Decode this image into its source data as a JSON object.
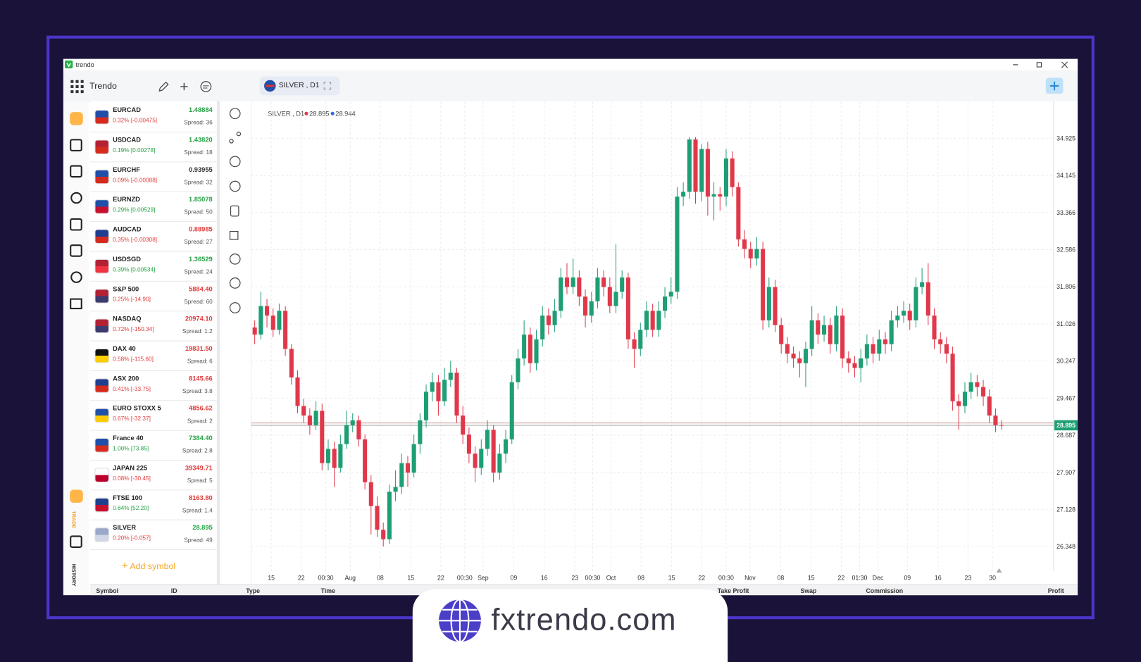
{
  "window": {
    "app_name": "trendo",
    "toolbar_title": "Trendo",
    "tab_label": "SILVER , D1"
  },
  "sidebar": {
    "trade_label": "TRADE",
    "history_label": "HISTORY"
  },
  "symbols": [
    {
      "name": "EURCAD",
      "change": "0.32% [-0.00475]",
      "price": "1.48884",
      "spread": "Spread: 36",
      "change_dir": "down",
      "price_dir": "up"
    },
    {
      "name": "USDCAD",
      "change": "0.19% [0.00278]",
      "price": "1.43820",
      "spread": "Spread: 18",
      "change_dir": "up",
      "price_dir": "up"
    },
    {
      "name": "EURCHF",
      "change": "0.09% [-0.00088]",
      "price": "0.93955",
      "spread": "Spread: 32",
      "change_dir": "down",
      "price_dir": "flat"
    },
    {
      "name": "EURNZD",
      "change": "0.29% [0.00529]",
      "price": "1.85078",
      "spread": "Spread: 50",
      "change_dir": "up",
      "price_dir": "up"
    },
    {
      "name": "AUDCAD",
      "change": "0.35% [-0.00308]",
      "price": "0.88985",
      "spread": "Spread: 27",
      "change_dir": "down",
      "price_dir": "down"
    },
    {
      "name": "USDSGD",
      "change": "0.39% [0.00534]",
      "price": "1.36529",
      "spread": "Spread: 24",
      "change_dir": "up",
      "price_dir": "up"
    },
    {
      "name": "S&P 500",
      "change": "0.25% [-14.90]",
      "price": "5884.40",
      "spread": "Spread: 60",
      "change_dir": "down",
      "price_dir": "down"
    },
    {
      "name": "NASDAQ",
      "change": "0.72% [-150.34]",
      "price": "20974.10",
      "spread": "Spread: 1.2",
      "change_dir": "down",
      "price_dir": "down"
    },
    {
      "name": "DAX 40",
      "change": "0.58% [-115.60]",
      "price": "19831.50",
      "spread": "Spread: 6",
      "change_dir": "down",
      "price_dir": "down"
    },
    {
      "name": "ASX 200",
      "change": "0.41% [-33.75]",
      "price": "8145.66",
      "spread": "Spread: 3.8",
      "change_dir": "down",
      "price_dir": "down"
    },
    {
      "name": "EURO STOXX 5",
      "change": "0.67% [-32.37]",
      "price": "4856.62",
      "spread": "Spread: 2",
      "change_dir": "down",
      "price_dir": "down"
    },
    {
      "name": "France 40",
      "change": "1.00% [73.85]",
      "price": "7384.40",
      "spread": "Spread: 2.8",
      "change_dir": "up",
      "price_dir": "up"
    },
    {
      "name": "JAPAN 225",
      "change": "0.08% [-30.45]",
      "price": "39349.71",
      "spread": "Spread: 5",
      "change_dir": "down",
      "price_dir": "down"
    },
    {
      "name": "FTSE 100",
      "change": "0.64% [52.20]",
      "price": "8163.80",
      "spread": "Spread: 1.4",
      "change_dir": "up",
      "price_dir": "down"
    },
    {
      "name": "SILVER",
      "change": "0.20% [-0.057]",
      "price": "28.895",
      "spread": "Spread: 49",
      "change_dir": "down",
      "price_dir": "up"
    }
  ],
  "add_symbol": "Add symbol",
  "positions_table": {
    "columns": [
      "Symbol",
      "ID",
      "Type",
      "Time",
      "Take Profit",
      "Swap",
      "Commission",
      "Profit"
    ]
  },
  "chart_data": {
    "type": "candlestick",
    "label": "SILVER , D1",
    "bid": 28.895,
    "ask": 28.944,
    "bid_color": "#e0384a",
    "ask_color": "#2f6fdb",
    "up_color": "#1e9e74",
    "down_color": "#e0384a",
    "grid": true,
    "ylim": [
      25.83,
      35.69
    ],
    "yticks": [
      34.925,
      34.145,
      33.366,
      32.586,
      31.806,
      31.026,
      30.247,
      29.467,
      28.687,
      27.907,
      27.128,
      26.348
    ],
    "xlim": [
      -0.6,
      130.5
    ],
    "xticks": [
      {
        "value": 2.7,
        "label": "15"
      },
      {
        "value": 7.6,
        "label": "22"
      },
      {
        "value": 11.6,
        "label": "00:30"
      },
      {
        "value": 15.6,
        "label": "Aug"
      },
      {
        "value": 20.5,
        "label": "08"
      },
      {
        "value": 25.5,
        "label": "15"
      },
      {
        "value": 30.4,
        "label": "22"
      },
      {
        "value": 34.3,
        "label": "00:30"
      },
      {
        "value": 37.3,
        "label": "Sep"
      },
      {
        "value": 42.3,
        "label": "09"
      },
      {
        "value": 47.3,
        "label": "16"
      },
      {
        "value": 52.3,
        "label": "23"
      },
      {
        "value": 55.2,
        "label": "00:30"
      },
      {
        "value": 58.2,
        "label": "Oct"
      },
      {
        "value": 63.1,
        "label": "08"
      },
      {
        "value": 68.1,
        "label": "15"
      },
      {
        "value": 73.0,
        "label": "22"
      },
      {
        "value": 77.0,
        "label": "00:30"
      },
      {
        "value": 80.9,
        "label": "Nov"
      },
      {
        "value": 85.9,
        "label": "08"
      },
      {
        "value": 90.9,
        "label": "15"
      },
      {
        "value": 95.8,
        "label": "22"
      },
      {
        "value": 98.8,
        "label": "01:30"
      },
      {
        "value": 101.8,
        "label": "Dec"
      },
      {
        "value": 106.6,
        "label": "09"
      },
      {
        "value": 111.6,
        "label": "16"
      },
      {
        "value": 116.5,
        "label": "23"
      },
      {
        "value": 120.5,
        "label": "30"
      }
    ],
    "candles": [
      [
        30.95,
        31.1,
        30.6,
        30.8
      ],
      [
        30.8,
        31.7,
        30.7,
        31.4
      ],
      [
        31.4,
        31.55,
        30.95,
        31.2
      ],
      [
        31.2,
        31.35,
        30.75,
        30.9
      ],
      [
        30.9,
        31.45,
        30.8,
        31.3
      ],
      [
        31.3,
        31.4,
        30.35,
        30.5
      ],
      [
        30.5,
        30.6,
        29.75,
        29.9
      ],
      [
        29.9,
        30.05,
        29.15,
        29.3
      ],
      [
        29.3,
        29.45,
        28.95,
        29.1
      ],
      [
        29.1,
        29.25,
        28.7,
        28.9
      ],
      [
        28.9,
        29.4,
        28.8,
        29.2
      ],
      [
        29.2,
        29.35,
        27.95,
        28.1
      ],
      [
        28.1,
        28.6,
        27.95,
        28.4
      ],
      [
        28.4,
        28.55,
        27.6,
        28.0
      ],
      [
        28.0,
        28.7,
        27.9,
        28.5
      ],
      [
        28.5,
        29.2,
        28.4,
        28.9
      ],
      [
        28.9,
        29.15,
        28.75,
        29.0
      ],
      [
        29.0,
        29.1,
        28.45,
        28.6
      ],
      [
        28.6,
        28.7,
        27.55,
        27.7
      ],
      [
        27.7,
        27.85,
        26.6,
        27.2
      ],
      [
        27.2,
        27.4,
        26.55,
        26.7
      ],
      [
        26.7,
        26.85,
        26.35,
        26.5
      ],
      [
        26.5,
        27.65,
        26.4,
        27.5
      ],
      [
        27.5,
        27.95,
        27.3,
        27.6
      ],
      [
        27.6,
        28.3,
        27.45,
        28.1
      ],
      [
        28.1,
        28.25,
        27.6,
        27.9
      ],
      [
        27.9,
        28.7,
        27.8,
        28.5
      ],
      [
        28.5,
        29.15,
        28.3,
        29.0
      ],
      [
        29.0,
        29.75,
        28.85,
        29.6
      ],
      [
        29.6,
        30.0,
        29.4,
        29.8
      ],
      [
        29.8,
        29.95,
        29.1,
        29.4
      ],
      [
        29.4,
        30.1,
        29.3,
        29.85
      ],
      [
        29.85,
        30.25,
        29.7,
        30.0
      ],
      [
        30.0,
        30.1,
        28.95,
        29.1
      ],
      [
        29.1,
        29.3,
        28.5,
        28.7
      ],
      [
        28.7,
        28.85,
        28.1,
        28.3
      ],
      [
        28.3,
        28.45,
        27.7,
        28.0
      ],
      [
        28.0,
        28.6,
        27.85,
        28.4
      ],
      [
        28.4,
        29.0,
        28.25,
        28.8
      ],
      [
        28.8,
        28.9,
        27.7,
        27.9
      ],
      [
        27.9,
        28.5,
        27.75,
        28.3
      ],
      [
        28.3,
        28.8,
        28.1,
        28.6
      ],
      [
        28.6,
        29.95,
        28.5,
        29.8
      ],
      [
        29.8,
        30.5,
        29.65,
        30.3
      ],
      [
        30.3,
        31.1,
        30.15,
        30.8
      ],
      [
        30.8,
        30.95,
        30.0,
        30.2
      ],
      [
        30.2,
        30.9,
        30.05,
        30.7
      ],
      [
        30.7,
        31.4,
        30.55,
        31.2
      ],
      [
        31.2,
        31.35,
        30.8,
        31.0
      ],
      [
        31.0,
        31.55,
        30.85,
        31.3
      ],
      [
        31.3,
        32.2,
        31.15,
        32.0
      ],
      [
        32.0,
        32.3,
        31.65,
        31.8
      ],
      [
        31.8,
        32.4,
        31.65,
        32.0
      ],
      [
        32.0,
        32.15,
        31.4,
        31.6
      ],
      [
        31.6,
        31.75,
        30.95,
        31.2
      ],
      [
        31.2,
        31.7,
        31.05,
        31.5
      ],
      [
        31.5,
        32.2,
        31.35,
        32.0
      ],
      [
        32.0,
        32.15,
        31.6,
        31.8
      ],
      [
        31.8,
        32.0,
        31.25,
        31.4
      ],
      [
        31.4,
        32.7,
        31.25,
        31.7
      ],
      [
        31.7,
        32.15,
        31.55,
        32.0
      ],
      [
        32.0,
        32.1,
        30.5,
        30.7
      ],
      [
        30.7,
        30.85,
        30.1,
        30.5
      ],
      [
        30.5,
        31.05,
        30.35,
        30.9
      ],
      [
        30.9,
        31.5,
        30.75,
        31.3
      ],
      [
        31.3,
        31.45,
        30.75,
        30.9
      ],
      [
        30.9,
        31.5,
        30.75,
        31.3
      ],
      [
        31.3,
        31.8,
        31.15,
        31.6
      ],
      [
        31.6,
        32.0,
        31.45,
        31.7
      ],
      [
        31.7,
        33.9,
        31.55,
        33.7
      ],
      [
        33.7,
        34.0,
        33.5,
        33.8
      ],
      [
        33.8,
        34.95,
        33.65,
        34.9
      ],
      [
        34.9,
        34.95,
        33.55,
        33.8
      ],
      [
        33.8,
        34.8,
        33.6,
        34.7
      ],
      [
        34.7,
        34.85,
        33.3,
        33.7
      ],
      [
        33.7,
        34.0,
        33.2,
        33.75
      ],
      [
        33.75,
        33.9,
        33.4,
        33.7
      ],
      [
        33.7,
        34.7,
        33.5,
        34.5
      ],
      [
        34.5,
        34.65,
        33.7,
        33.9
      ],
      [
        33.9,
        34.0,
        32.65,
        32.8
      ],
      [
        32.8,
        33.0,
        32.4,
        32.6
      ],
      [
        32.6,
        32.75,
        32.2,
        32.4
      ],
      [
        32.4,
        32.85,
        32.25,
        32.6
      ],
      [
        32.6,
        32.75,
        30.9,
        31.1
      ],
      [
        31.1,
        32.0,
        30.95,
        31.8
      ],
      [
        31.8,
        31.95,
        30.85,
        31.0
      ],
      [
        31.0,
        31.15,
        30.4,
        30.6
      ],
      [
        30.6,
        30.75,
        30.2,
        30.4
      ],
      [
        30.4,
        30.55,
        30.1,
        30.3
      ],
      [
        30.3,
        30.45,
        29.9,
        30.2
      ],
      [
        30.2,
        30.65,
        29.7,
        30.5
      ],
      [
        30.5,
        31.4,
        30.35,
        31.1
      ],
      [
        31.1,
        31.25,
        30.6,
        30.8
      ],
      [
        30.8,
        31.2,
        30.65,
        31.0
      ],
      [
        31.0,
        31.15,
        30.4,
        30.6
      ],
      [
        30.6,
        31.4,
        30.45,
        31.2
      ],
      [
        31.2,
        31.35,
        30.1,
        30.3
      ],
      [
        30.3,
        30.45,
        30.0,
        30.2
      ],
      [
        30.2,
        30.35,
        29.9,
        30.1
      ],
      [
        30.1,
        30.5,
        29.8,
        30.3
      ],
      [
        30.3,
        30.8,
        30.15,
        30.6
      ],
      [
        30.6,
        30.75,
        30.2,
        30.4
      ],
      [
        30.4,
        30.9,
        30.25,
        30.7
      ],
      [
        30.7,
        30.85,
        30.4,
        30.6
      ],
      [
        30.6,
        31.3,
        30.45,
        31.1
      ],
      [
        31.1,
        31.4,
        30.95,
        31.2
      ],
      [
        31.2,
        31.5,
        31.05,
        31.3
      ],
      [
        31.3,
        31.45,
        30.9,
        31.1
      ],
      [
        31.1,
        32.0,
        30.95,
        31.8
      ],
      [
        31.8,
        32.2,
        31.65,
        31.9
      ],
      [
        31.9,
        32.3,
        31.0,
        31.2
      ],
      [
        31.2,
        31.35,
        30.5,
        30.7
      ],
      [
        30.7,
        30.85,
        30.4,
        30.6
      ],
      [
        30.6,
        30.75,
        30.2,
        30.4
      ],
      [
        30.4,
        30.55,
        29.2,
        29.4
      ],
      [
        29.4,
        29.55,
        28.8,
        29.3
      ],
      [
        29.3,
        29.8,
        29.15,
        29.6
      ],
      [
        29.6,
        30.0,
        29.45,
        29.8
      ],
      [
        29.8,
        29.95,
        29.5,
        29.7
      ],
      [
        29.7,
        29.85,
        29.3,
        29.5
      ],
      [
        29.5,
        29.65,
        28.95,
        29.1
      ],
      [
        29.1,
        29.25,
        28.75,
        28.9
      ],
      [
        28.9,
        29.0,
        28.8,
        28.895
      ]
    ]
  },
  "watermark": "fxtrendo.com"
}
